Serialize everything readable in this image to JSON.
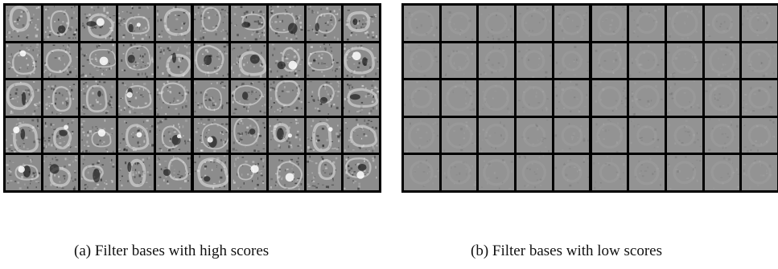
{
  "figure": {
    "panels": [
      {
        "id": "a",
        "caption": "(a) Filter bases with high scores",
        "rows": 5,
        "cols": 10,
        "tile_background": "#8c8c8c",
        "variant": "high-score"
      },
      {
        "id": "b",
        "caption": "(b) Filter bases with low scores",
        "rows": 5,
        "cols": 10,
        "tile_background": "#939393",
        "variant": "low-score"
      }
    ],
    "colors": {
      "grid_line": "#000000",
      "page": "#ffffff"
    }
  }
}
